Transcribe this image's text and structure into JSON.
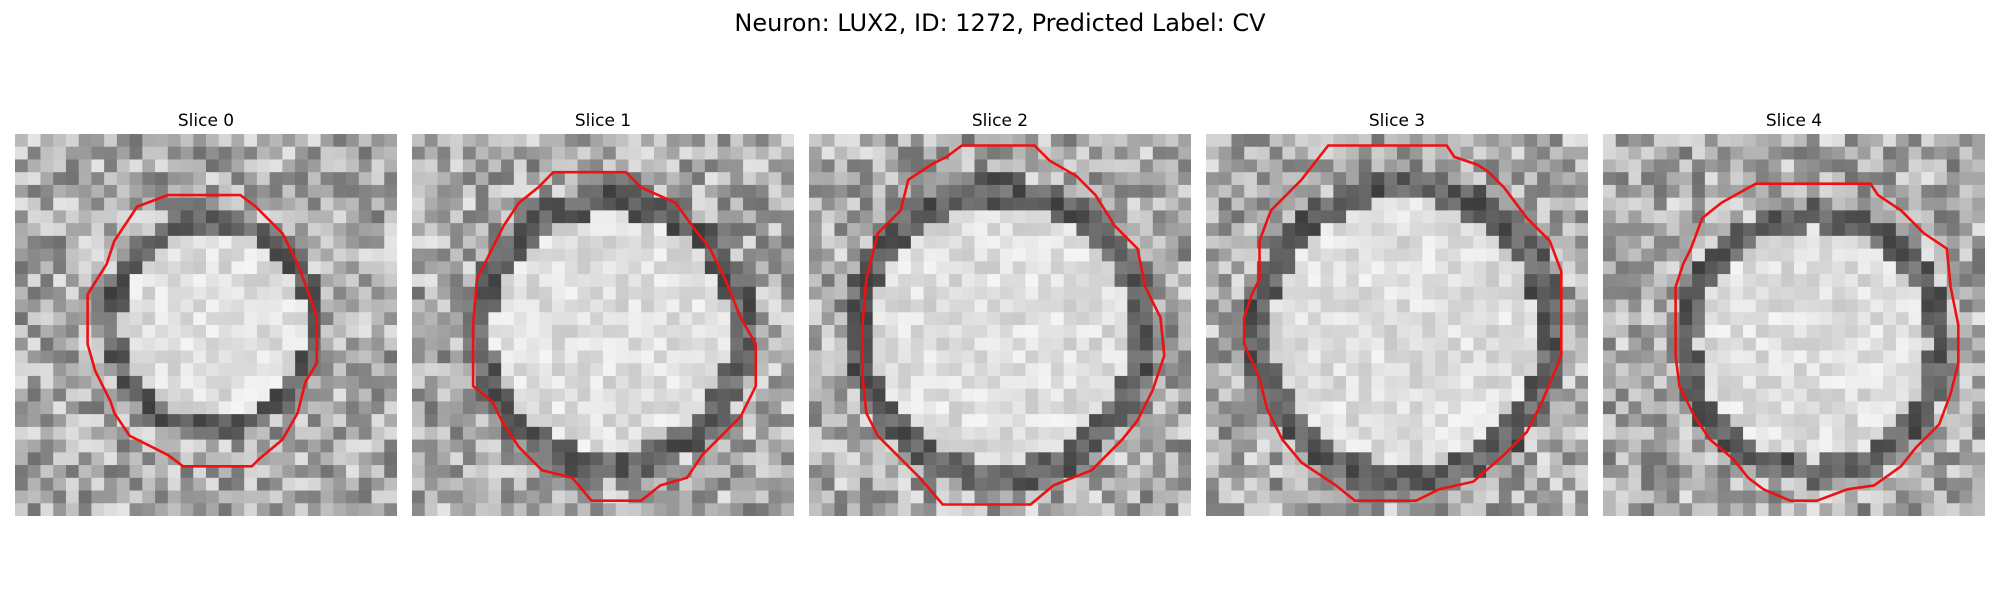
{
  "figure": {
    "title": "Neuron: LUX2, ID: 1272, Predicted Label: CV"
  },
  "panels": [
    {
      "title": "Slice 0",
      "cell_diameter_frac": 0.56,
      "cell_center": [
        0.52,
        0.5
      ],
      "contour": [
        [
          0.4,
          0.16
        ],
        [
          0.59,
          0.16
        ],
        [
          0.63,
          0.19
        ],
        [
          0.7,
          0.26
        ],
        [
          0.74,
          0.34
        ],
        [
          0.77,
          0.42
        ],
        [
          0.79,
          0.48
        ],
        [
          0.79,
          0.6
        ],
        [
          0.76,
          0.65
        ],
        [
          0.74,
          0.73
        ],
        [
          0.7,
          0.8
        ],
        [
          0.64,
          0.85
        ],
        [
          0.62,
          0.87
        ],
        [
          0.44,
          0.87
        ],
        [
          0.4,
          0.84
        ],
        [
          0.3,
          0.79
        ],
        [
          0.26,
          0.73
        ],
        [
          0.25,
          0.7
        ],
        [
          0.21,
          0.62
        ],
        [
          0.19,
          0.55
        ],
        [
          0.19,
          0.42
        ],
        [
          0.24,
          0.34
        ],
        [
          0.26,
          0.28
        ],
        [
          0.32,
          0.19
        ]
      ]
    },
    {
      "title": "Slice 1",
      "cell_diameter_frac": 0.72,
      "cell_center": [
        0.52,
        0.52
      ],
      "contour": [
        [
          0.37,
          0.1
        ],
        [
          0.56,
          0.1
        ],
        [
          0.6,
          0.14
        ],
        [
          0.69,
          0.18
        ],
        [
          0.74,
          0.25
        ],
        [
          0.78,
          0.3
        ],
        [
          0.82,
          0.38
        ],
        [
          0.86,
          0.48
        ],
        [
          0.9,
          0.55
        ],
        [
          0.9,
          0.66
        ],
        [
          0.86,
          0.74
        ],
        [
          0.81,
          0.79
        ],
        [
          0.76,
          0.84
        ],
        [
          0.72,
          0.9
        ],
        [
          0.65,
          0.92
        ],
        [
          0.6,
          0.96
        ],
        [
          0.47,
          0.96
        ],
        [
          0.42,
          0.9
        ],
        [
          0.34,
          0.88
        ],
        [
          0.28,
          0.82
        ],
        [
          0.24,
          0.76
        ],
        [
          0.21,
          0.7
        ],
        [
          0.16,
          0.66
        ],
        [
          0.16,
          0.5
        ],
        [
          0.17,
          0.38
        ],
        [
          0.21,
          0.3
        ],
        [
          0.24,
          0.24
        ],
        [
          0.28,
          0.18
        ],
        [
          0.33,
          0.14
        ]
      ]
    },
    {
      "title": "Slice 2",
      "cell_diameter_frac": 0.78,
      "cell_center": [
        0.5,
        0.52
      ],
      "contour": [
        [
          0.4,
          0.03
        ],
        [
          0.59,
          0.03
        ],
        [
          0.63,
          0.07
        ],
        [
          0.7,
          0.11
        ],
        [
          0.75,
          0.16
        ],
        [
          0.8,
          0.24
        ],
        [
          0.86,
          0.3
        ],
        [
          0.88,
          0.4
        ],
        [
          0.92,
          0.48
        ],
        [
          0.93,
          0.58
        ],
        [
          0.9,
          0.67
        ],
        [
          0.86,
          0.75
        ],
        [
          0.82,
          0.8
        ],
        [
          0.74,
          0.88
        ],
        [
          0.64,
          0.92
        ],
        [
          0.58,
          0.97
        ],
        [
          0.35,
          0.97
        ],
        [
          0.29,
          0.9
        ],
        [
          0.24,
          0.85
        ],
        [
          0.18,
          0.79
        ],
        [
          0.15,
          0.73
        ],
        [
          0.14,
          0.63
        ],
        [
          0.14,
          0.5
        ],
        [
          0.15,
          0.38
        ],
        [
          0.18,
          0.26
        ],
        [
          0.24,
          0.2
        ],
        [
          0.26,
          0.12
        ],
        [
          0.32,
          0.08
        ],
        [
          0.36,
          0.06
        ]
      ]
    },
    {
      "title": "Slice 3",
      "cell_diameter_frac": 0.8,
      "cell_center": [
        0.52,
        0.52
      ],
      "contour": [
        [
          0.32,
          0.03
        ],
        [
          0.63,
          0.03
        ],
        [
          0.65,
          0.06
        ],
        [
          0.71,
          0.08
        ],
        [
          0.74,
          0.1
        ],
        [
          0.78,
          0.14
        ],
        [
          0.84,
          0.22
        ],
        [
          0.9,
          0.28
        ],
        [
          0.93,
          0.36
        ],
        [
          0.93,
          0.58
        ],
        [
          0.88,
          0.7
        ],
        [
          0.84,
          0.78
        ],
        [
          0.78,
          0.84
        ],
        [
          0.7,
          0.91
        ],
        [
          0.61,
          0.93
        ],
        [
          0.55,
          0.96
        ],
        [
          0.39,
          0.96
        ],
        [
          0.34,
          0.92
        ],
        [
          0.25,
          0.86
        ],
        [
          0.2,
          0.8
        ],
        [
          0.16,
          0.72
        ],
        [
          0.14,
          0.64
        ],
        [
          0.1,
          0.55
        ],
        [
          0.1,
          0.48
        ],
        [
          0.12,
          0.42
        ],
        [
          0.14,
          0.38
        ],
        [
          0.14,
          0.28
        ],
        [
          0.17,
          0.2
        ],
        [
          0.25,
          0.12
        ]
      ]
    },
    {
      "title": "Slice 4",
      "cell_diameter_frac": 0.7,
      "cell_center": [
        0.55,
        0.55
      ],
      "contour": [
        [
          0.4,
          0.13
        ],
        [
          0.7,
          0.13
        ],
        [
          0.72,
          0.16
        ],
        [
          0.78,
          0.2
        ],
        [
          0.84,
          0.26
        ],
        [
          0.9,
          0.3
        ],
        [
          0.91,
          0.4
        ],
        [
          0.93,
          0.5
        ],
        [
          0.93,
          0.6
        ],
        [
          0.91,
          0.68
        ],
        [
          0.88,
          0.76
        ],
        [
          0.82,
          0.82
        ],
        [
          0.78,
          0.87
        ],
        [
          0.71,
          0.92
        ],
        [
          0.64,
          0.93
        ],
        [
          0.56,
          0.96
        ],
        [
          0.49,
          0.96
        ],
        [
          0.42,
          0.93
        ],
        [
          0.38,
          0.9
        ],
        [
          0.34,
          0.85
        ],
        [
          0.28,
          0.8
        ],
        [
          0.24,
          0.74
        ],
        [
          0.2,
          0.66
        ],
        [
          0.19,
          0.58
        ],
        [
          0.19,
          0.4
        ],
        [
          0.21,
          0.34
        ],
        [
          0.23,
          0.3
        ],
        [
          0.26,
          0.22
        ],
        [
          0.31,
          0.18
        ]
      ]
    }
  ],
  "colors": {
    "contour": "#ee1111"
  }
}
